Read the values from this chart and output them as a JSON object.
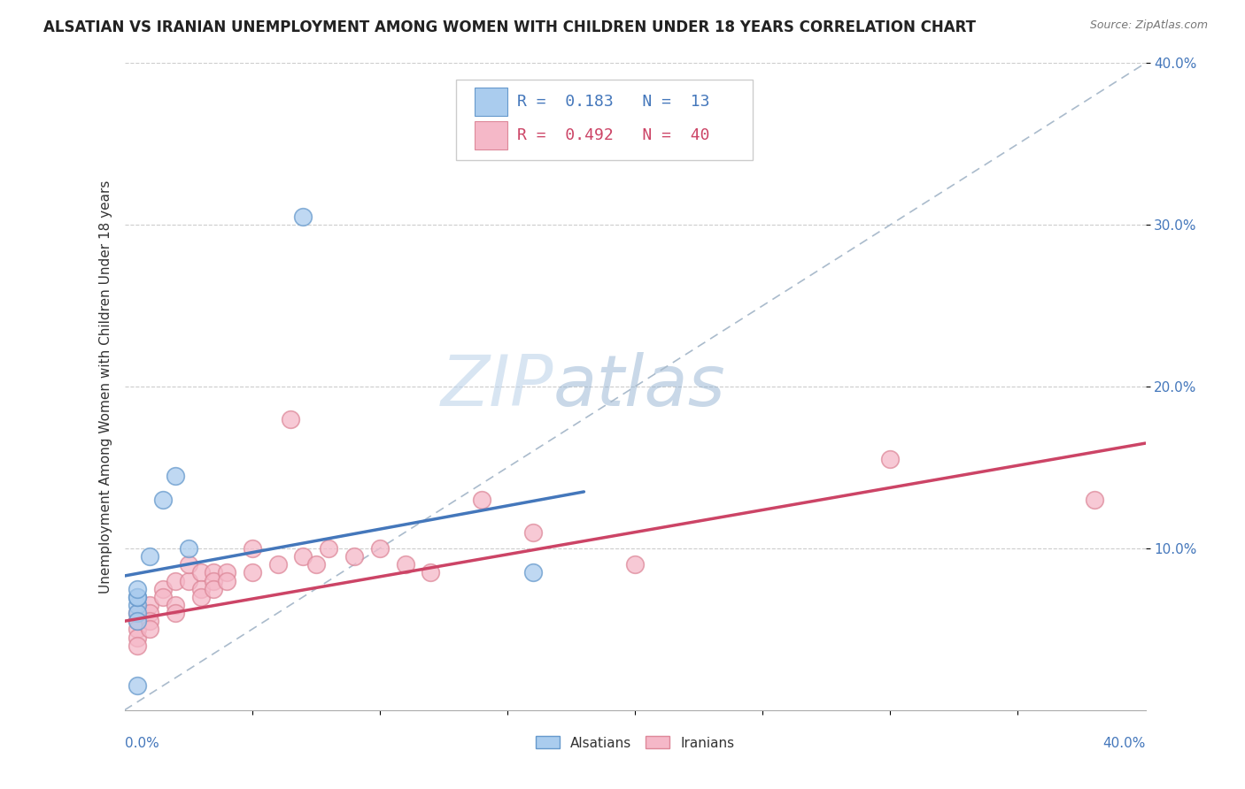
{
  "title": "ALSATIAN VS IRANIAN UNEMPLOYMENT AMONG WOMEN WITH CHILDREN UNDER 18 YEARS CORRELATION CHART",
  "source": "Source: ZipAtlas.com",
  "ylabel": "Unemployment Among Women with Children Under 18 years",
  "xlim": [
    0.0,
    0.4
  ],
  "ylim": [
    0.0,
    0.4
  ],
  "yticks": [
    0.1,
    0.2,
    0.3,
    0.4
  ],
  "ytick_labels": [
    "10.0%",
    "20.0%",
    "30.0%",
    "40.0%"
  ],
  "alsatian_R": 0.183,
  "alsatian_N": 13,
  "iranian_R": 0.492,
  "iranian_N": 40,
  "alsatian_color": "#aaccee",
  "alsatian_edge_color": "#6699cc",
  "alsatian_line_color": "#4477bb",
  "iranian_color": "#f5b8c8",
  "iranian_edge_color": "#dd8899",
  "iranian_line_color": "#cc4466",
  "alsatian_scatter_x": [
    0.005,
    0.005,
    0.005,
    0.005,
    0.005,
    0.005,
    0.01,
    0.015,
    0.02,
    0.025,
    0.07,
    0.005,
    0.16
  ],
  "alsatian_scatter_y": [
    0.065,
    0.06,
    0.055,
    0.07,
    0.07,
    0.075,
    0.095,
    0.13,
    0.145,
    0.1,
    0.305,
    0.015,
    0.085
  ],
  "iranian_scatter_x": [
    0.005,
    0.005,
    0.005,
    0.005,
    0.005,
    0.01,
    0.01,
    0.01,
    0.01,
    0.015,
    0.015,
    0.02,
    0.02,
    0.02,
    0.025,
    0.025,
    0.03,
    0.03,
    0.03,
    0.035,
    0.035,
    0.035,
    0.04,
    0.04,
    0.05,
    0.05,
    0.06,
    0.065,
    0.07,
    0.075,
    0.08,
    0.09,
    0.1,
    0.11,
    0.12,
    0.14,
    0.16,
    0.2,
    0.3,
    0.38
  ],
  "iranian_scatter_y": [
    0.06,
    0.055,
    0.05,
    0.045,
    0.04,
    0.065,
    0.06,
    0.055,
    0.05,
    0.075,
    0.07,
    0.065,
    0.06,
    0.08,
    0.08,
    0.09,
    0.085,
    0.075,
    0.07,
    0.085,
    0.08,
    0.075,
    0.085,
    0.08,
    0.1,
    0.085,
    0.09,
    0.18,
    0.095,
    0.09,
    0.1,
    0.095,
    0.1,
    0.09,
    0.085,
    0.13,
    0.11,
    0.09,
    0.155,
    0.13
  ],
  "alsatian_line_x0": 0.0,
  "alsatian_line_y0": 0.083,
  "alsatian_line_x1": 0.18,
  "alsatian_line_y1": 0.135,
  "iranian_line_x0": 0.0,
  "iranian_line_y0": 0.055,
  "iranian_line_x1": 0.4,
  "iranian_line_y1": 0.165,
  "diag_color": "#aabbcc",
  "watermark_zip": "ZIP",
  "watermark_atlas": "atlas",
  "background_color": "#ffffff",
  "grid_color": "#cccccc",
  "title_fontsize": 12,
  "axis_fontsize": 11,
  "tick_fontsize": 11
}
